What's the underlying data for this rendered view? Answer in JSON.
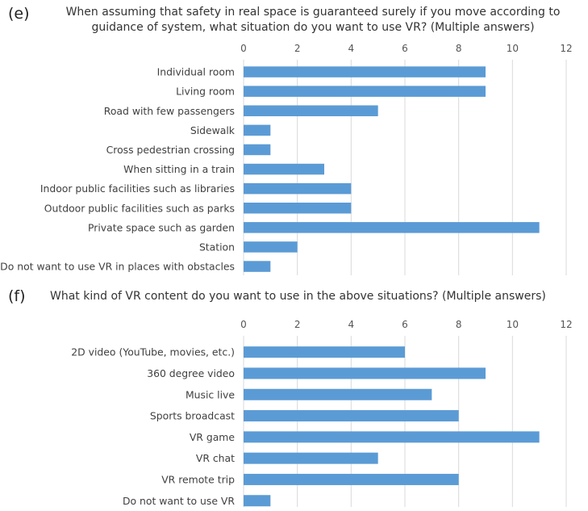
{
  "chart_data": [
    {
      "type": "bar",
      "orientation": "horizontal",
      "panel_label": "(e)",
      "title": "When assuming that safety in real space is guaranteed surely if you move according to guidance of system, what situation do you want to use VR? (Multiple answers)",
      "categories": [
        "Individual room",
        "Living room",
        "Road with few passengers",
        "Sidewalk",
        "Cross pedestrian crossing",
        "When sitting in a train",
        "Indoor public facilities such as libraries",
        "Outdoor public facilities such as parks",
        "Private space such as garden",
        "Station",
        "Do not want to use VR in places with obstacles"
      ],
      "values": [
        9,
        9,
        5,
        1,
        1,
        3,
        4,
        4,
        11,
        2,
        1
      ],
      "xlim": [
        0,
        12
      ],
      "xticks": [
        "0",
        "2",
        "4",
        "6",
        "8",
        "10",
        "12"
      ],
      "grid": true,
      "bar_color": "#5b9bd5"
    },
    {
      "type": "bar",
      "orientation": "horizontal",
      "panel_label": "(f)",
      "title": "What kind of VR content do you want to use in the above situations? (Multiple answers)",
      "categories": [
        "2D video (YouTube, movies, etc.)",
        "360 degree video",
        "Music live",
        "Sports broadcast",
        "VR game",
        "VR chat",
        "VR remote trip",
        "Do not want to use VR"
      ],
      "values": [
        6,
        9,
        7,
        8,
        11,
        5,
        8,
        1
      ],
      "xlim": [
        0,
        12
      ],
      "xticks": [
        "0",
        "2",
        "4",
        "6",
        "8",
        "10",
        "12"
      ],
      "grid": true,
      "bar_color": "#5b9bd5"
    }
  ]
}
